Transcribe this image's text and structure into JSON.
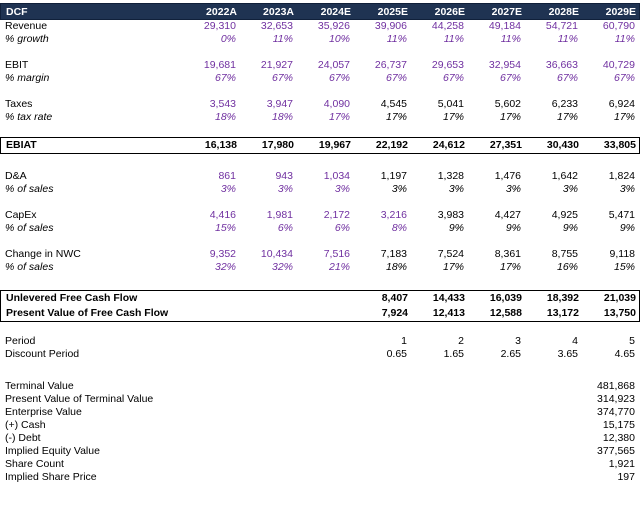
{
  "colors": {
    "header_bg": "#1F3352",
    "header_text": "#FFFFFF",
    "input_value": "#7030A0",
    "formula_value": "#000000"
  },
  "table": {
    "title": "DCF",
    "columns": [
      "2022A",
      "2023A",
      "2024E",
      "2025E",
      "2026E",
      "2027E",
      "2028E",
      "2029E"
    ],
    "rows": [
      {
        "label": "Revenue",
        "values": [
          "29,310",
          "32,653",
          "35,926",
          "39,906",
          "44,258",
          "49,184",
          "54,721",
          "60,790"
        ],
        "colors": "pppppppp"
      },
      {
        "label": "% growth",
        "italic": true,
        "values": [
          "0%",
          "11%",
          "10%",
          "11%",
          "11%",
          "11%",
          "11%",
          "11%"
        ],
        "colors": "pppppppp"
      },
      {
        "kind": "spacer",
        "h": 13
      },
      {
        "label": "EBIT",
        "values": [
          "19,681",
          "21,927",
          "24,057",
          "26,737",
          "29,653",
          "32,954",
          "36,663",
          "40,729"
        ],
        "colors": "pppppppp"
      },
      {
        "label": "% margin",
        "italic": true,
        "values": [
          "67%",
          "67%",
          "67%",
          "67%",
          "67%",
          "67%",
          "67%",
          "67%"
        ],
        "colors": "pppppppp"
      },
      {
        "kind": "spacer",
        "h": 13
      },
      {
        "label": "Taxes",
        "values": [
          "3,543",
          "3,947",
          "4,090",
          "4,545",
          "5,041",
          "5,602",
          "6,233",
          "6,924"
        ],
        "colors": "pppkkkkk"
      },
      {
        "label": "% tax rate",
        "italic": true,
        "values": [
          "18%",
          "18%",
          "17%",
          "17%",
          "17%",
          "17%",
          "17%",
          "17%"
        ],
        "colors": "pppkkkkk"
      },
      {
        "kind": "spacer",
        "h": 13
      },
      {
        "label": "EBIAT",
        "bold": true,
        "boxed": true,
        "values": [
          "16,138",
          "17,980",
          "19,967",
          "22,192",
          "24,612",
          "27,351",
          "30,430",
          "33,805"
        ],
        "colors": "kkkkkkkk"
      },
      {
        "kind": "spacer",
        "h": 16
      },
      {
        "label": "D&A",
        "values": [
          "861",
          "943",
          "1,034",
          "1,197",
          "1,328",
          "1,476",
          "1,642",
          "1,824"
        ],
        "colors": "pppkkkkk"
      },
      {
        "label": "% of sales",
        "italic": true,
        "values": [
          "3%",
          "3%",
          "3%",
          "3%",
          "3%",
          "3%",
          "3%",
          "3%"
        ],
        "colors": "pppkkkkk"
      },
      {
        "kind": "spacer",
        "h": 13
      },
      {
        "label": "CapEx",
        "values": [
          "4,416",
          "1,981",
          "2,172",
          "3,216",
          "3,983",
          "4,427",
          "4,925",
          "5,471"
        ],
        "colors": "ppppkkkk"
      },
      {
        "label": "% of sales",
        "italic": true,
        "values": [
          "15%",
          "6%",
          "6%",
          "8%",
          "9%",
          "9%",
          "9%",
          "9%"
        ],
        "colors": "ppppkkkk"
      },
      {
        "kind": "spacer",
        "h": 13
      },
      {
        "label": "Change in NWC",
        "values": [
          "9,352",
          "10,434",
          "7,516",
          "7,183",
          "7,524",
          "8,361",
          "8,755",
          "9,118"
        ],
        "colors": "pppkkkkk"
      },
      {
        "label": "% of sales",
        "italic": true,
        "values": [
          "32%",
          "32%",
          "21%",
          "18%",
          "17%",
          "17%",
          "16%",
          "15%"
        ],
        "colors": "pppkkkkk"
      },
      {
        "kind": "spacer",
        "h": 16
      },
      {
        "label": "Unlevered Free Cash Flow",
        "bold": true,
        "boxed": true,
        "values": [
          "",
          "",
          "",
          "8,407",
          "14,433",
          "16,039",
          "18,392",
          "21,039"
        ],
        "colors": "kkkkkkkk"
      },
      {
        "label": "Present Value of Free Cash Flow",
        "bold": true,
        "boxed": true,
        "values": [
          "",
          "",
          "",
          "7,924",
          "12,413",
          "12,588",
          "13,172",
          "13,750"
        ],
        "colors": "kkkkkkkk"
      },
      {
        "kind": "spacer",
        "h": 13
      },
      {
        "label": "Period",
        "values": [
          "",
          "",
          "",
          "1",
          "2",
          "3",
          "4",
          "5"
        ],
        "colors": "kkkkkkkk"
      },
      {
        "label": "Discount Period",
        "values": [
          "",
          "",
          "",
          "0.65",
          "1.65",
          "2.65",
          "3.65",
          "4.65"
        ],
        "colors": "kkkkkkkk"
      },
      {
        "kind": "spacer",
        "h": 19
      },
      {
        "label": "Terminal Value",
        "values": [
          "",
          "",
          "",
          "",
          "",
          "",
          "",
          "481,868"
        ],
        "colors": "kkkkkkkk"
      },
      {
        "label": "Present Value of Terminal Value",
        "values": [
          "",
          "",
          "",
          "",
          "",
          "",
          "",
          "314,923"
        ],
        "colors": "kkkkkkkk"
      },
      {
        "label": "Enterprise Value",
        "values": [
          "",
          "",
          "",
          "",
          "",
          "",
          "",
          "374,770"
        ],
        "colors": "kkkkkkkk"
      },
      {
        "label": "(+) Cash",
        "values": [
          "",
          "",
          "",
          "",
          "",
          "",
          "",
          "15,175"
        ],
        "colors": "kkkkkkkk"
      },
      {
        "label": "(-) Debt",
        "values": [
          "",
          "",
          "",
          "",
          "",
          "",
          "",
          "12,380"
        ],
        "colors": "kkkkkkkk"
      },
      {
        "label": "Implied Equity Value",
        "values": [
          "",
          "",
          "",
          "",
          "",
          "",
          "",
          "377,565"
        ],
        "colors": "kkkkkkkk"
      },
      {
        "label": "Share Count",
        "values": [
          "",
          "",
          "",
          "",
          "",
          "",
          "",
          "1,921"
        ],
        "colors": "kkkkkkkk"
      },
      {
        "label": "Implied Share Price",
        "values": [
          "",
          "",
          "",
          "",
          "",
          "",
          "",
          "197"
        ],
        "colors": "kkkkkkkk"
      }
    ]
  }
}
